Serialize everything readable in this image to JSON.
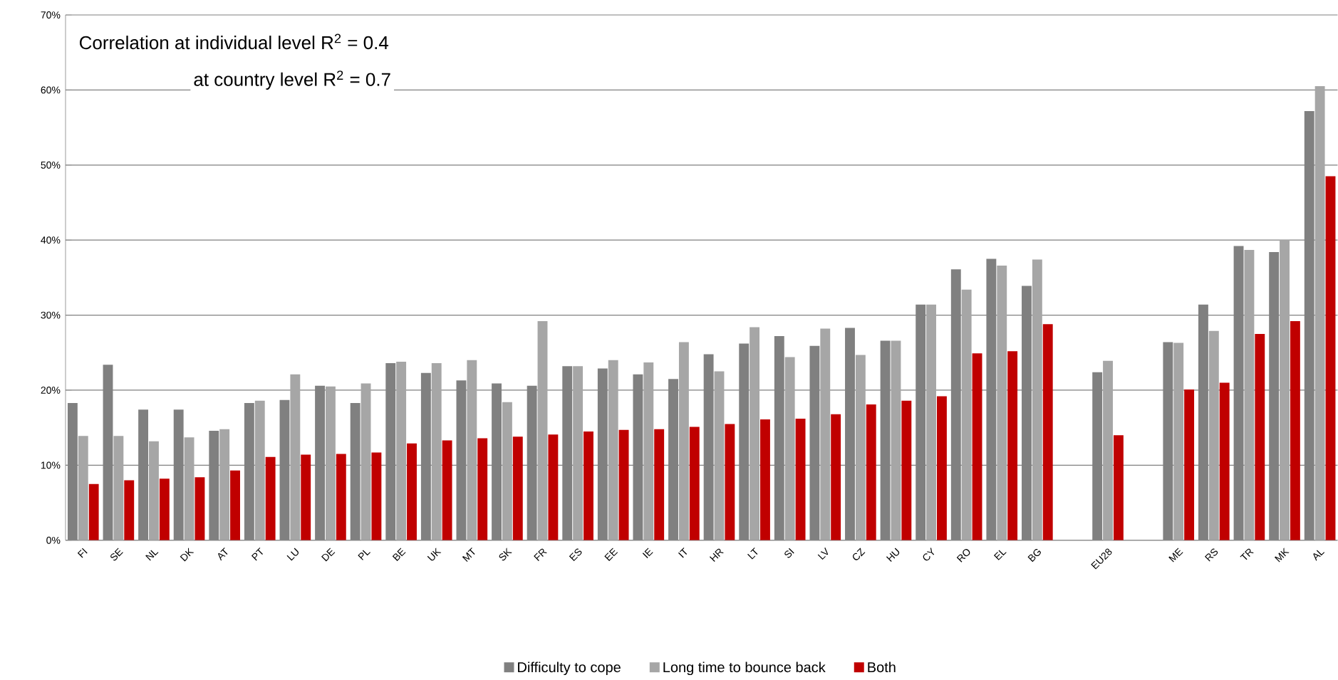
{
  "chart_data": {
    "type": "bar",
    "categories": [
      "FI",
      "SE",
      "NL",
      "DK",
      "AT",
      "PT",
      "LU",
      "DE",
      "PL",
      "BE",
      "UK",
      "MT",
      "SK",
      "FR",
      "ES",
      "EE",
      "IE",
      "IT",
      "HR",
      "LT",
      "SI",
      "LV",
      "CZ",
      "HU",
      "CY",
      "RO",
      "EL",
      "BG",
      null,
      "EU28",
      null,
      "ME",
      "RS",
      "TR",
      "MK",
      "AL"
    ],
    "series": [
      {
        "name": "Difficulty to cope",
        "color": "#808080",
        "values": [
          18.3,
          23.4,
          17.4,
          17.4,
          14.6,
          18.3,
          18.7,
          20.6,
          18.3,
          23.6,
          22.3,
          21.3,
          20.9,
          20.6,
          23.2,
          22.9,
          22.1,
          21.5,
          24.8,
          26.2,
          27.2,
          25.9,
          28.3,
          26.6,
          31.4,
          36.1,
          37.5,
          33.9,
          null,
          22.4,
          null,
          26.4,
          31.4,
          39.2,
          38.4,
          57.2
        ]
      },
      {
        "name": "Long time to bounce back",
        "color": "#a6a6a6",
        "values": [
          13.9,
          13.9,
          13.2,
          13.7,
          14.8,
          18.6,
          22.1,
          20.5,
          20.9,
          23.8,
          23.6,
          24.0,
          18.4,
          29.2,
          23.2,
          24.0,
          23.7,
          26.4,
          22.5,
          28.4,
          24.4,
          28.2,
          24.7,
          26.6,
          31.4,
          33.4,
          36.6,
          37.4,
          null,
          23.9,
          null,
          26.3,
          27.9,
          38.7,
          40.0,
          60.5
        ]
      },
      {
        "name": "Both",
        "color": "#c00000",
        "values": [
          7.5,
          8.0,
          8.2,
          8.4,
          9.3,
          11.1,
          11.4,
          11.5,
          11.7,
          12.9,
          13.3,
          13.6,
          13.8,
          14.1,
          14.5,
          14.7,
          14.8,
          15.1,
          15.5,
          16.1,
          16.2,
          16.8,
          18.1,
          18.6,
          19.2,
          24.9,
          25.2,
          28.8,
          null,
          14.0,
          null,
          20.1,
          21.0,
          27.5,
          29.2,
          48.5
        ]
      }
    ],
    "ylim": [
      0,
      70
    ],
    "yticks": [
      {
        "value": 0,
        "label": "0%"
      },
      {
        "value": 10,
        "label": "10%"
      },
      {
        "value": 20,
        "label": "20%"
      },
      {
        "value": 30,
        "label": "30%"
      },
      {
        "value": 40,
        "label": "40%"
      },
      {
        "value": 50,
        "label": "50%"
      },
      {
        "value": 60,
        "label": "60%"
      },
      {
        "value": 70,
        "label": "70%"
      }
    ],
    "grid": "y",
    "legend": "bottom",
    "annotations": [
      "Correlation  at individual level  R$^{2}$ = 0.4",
      "at country level     R$^{2}$ = 0.7"
    ]
  }
}
